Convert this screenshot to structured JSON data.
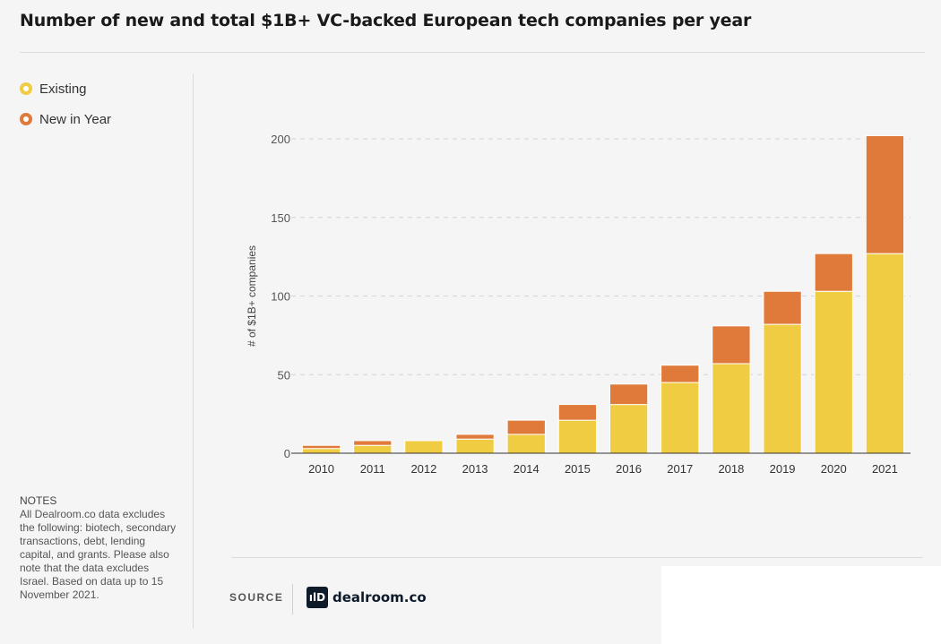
{
  "title": "Number of new and total $1B+ VC-backed European tech companies per year",
  "legend": [
    {
      "label": "Existing",
      "color": "#f0cc43"
    },
    {
      "label": "New in Year",
      "color": "#e07a3a"
    }
  ],
  "notes": {
    "title": "NOTES",
    "text": "All Dealroom.co data excludes the following: biotech, secondary transactions, debt, lending capital, and grants. Please also note that the data excludes Israel. Based on data up to 15 November 2021."
  },
  "source": {
    "label": "SOURCE",
    "logo_mark": "ılD",
    "logo_text": "dealroom.co"
  },
  "chart_data": {
    "type": "bar",
    "stacked": true,
    "ylabel": "# of $1B+ companies",
    "xlabel": "",
    "ylim": [
      0,
      200
    ],
    "yticks": [
      0,
      50,
      100,
      150,
      200
    ],
    "grid": true,
    "categories": [
      "2010",
      "2011",
      "2012",
      "2013",
      "2014",
      "2015",
      "2016",
      "2017",
      "2018",
      "2019",
      "2020",
      "2021"
    ],
    "series": [
      {
        "name": "Existing",
        "color": "#f0cc43",
        "values": [
          3,
          5,
          8,
          9,
          12,
          21,
          31,
          45,
          57,
          82,
          103,
          127
        ]
      },
      {
        "name": "New in Year",
        "color": "#e07a3a",
        "values": [
          2,
          3,
          0,
          3,
          9,
          10,
          13,
          11,
          24,
          21,
          24,
          75
        ]
      }
    ]
  }
}
